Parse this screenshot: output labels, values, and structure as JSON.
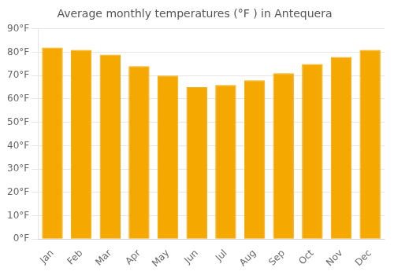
{
  "chart_data": {
    "type": "bar",
    "title": "Average monthly temperatures (°F ) in Antequera",
    "categories": [
      "Jan",
      "Feb",
      "Mar",
      "Apr",
      "May",
      "Jun",
      "Jul",
      "Aug",
      "Sep",
      "Oct",
      "Nov",
      "Dec"
    ],
    "values": [
      82,
      81,
      79,
      74,
      70,
      65,
      66,
      68,
      71,
      75,
      78,
      81
    ],
    "color": "#F5A800",
    "ylim": [
      0,
      90
    ],
    "yticks": [
      {
        "value": 0,
        "label": "0°F"
      },
      {
        "value": 10,
        "label": "10°F"
      },
      {
        "value": 20,
        "label": "20°F"
      },
      {
        "value": 30,
        "label": "30°F"
      },
      {
        "value": 40,
        "label": "40°F"
      },
      {
        "value": 50,
        "label": "50°F"
      },
      {
        "value": 60,
        "label": "60°F"
      },
      {
        "value": 70,
        "label": "70°F"
      },
      {
        "value": 80,
        "label": "80°F"
      },
      {
        "value": 90,
        "label": "90°F"
      }
    ],
    "grid": true
  }
}
